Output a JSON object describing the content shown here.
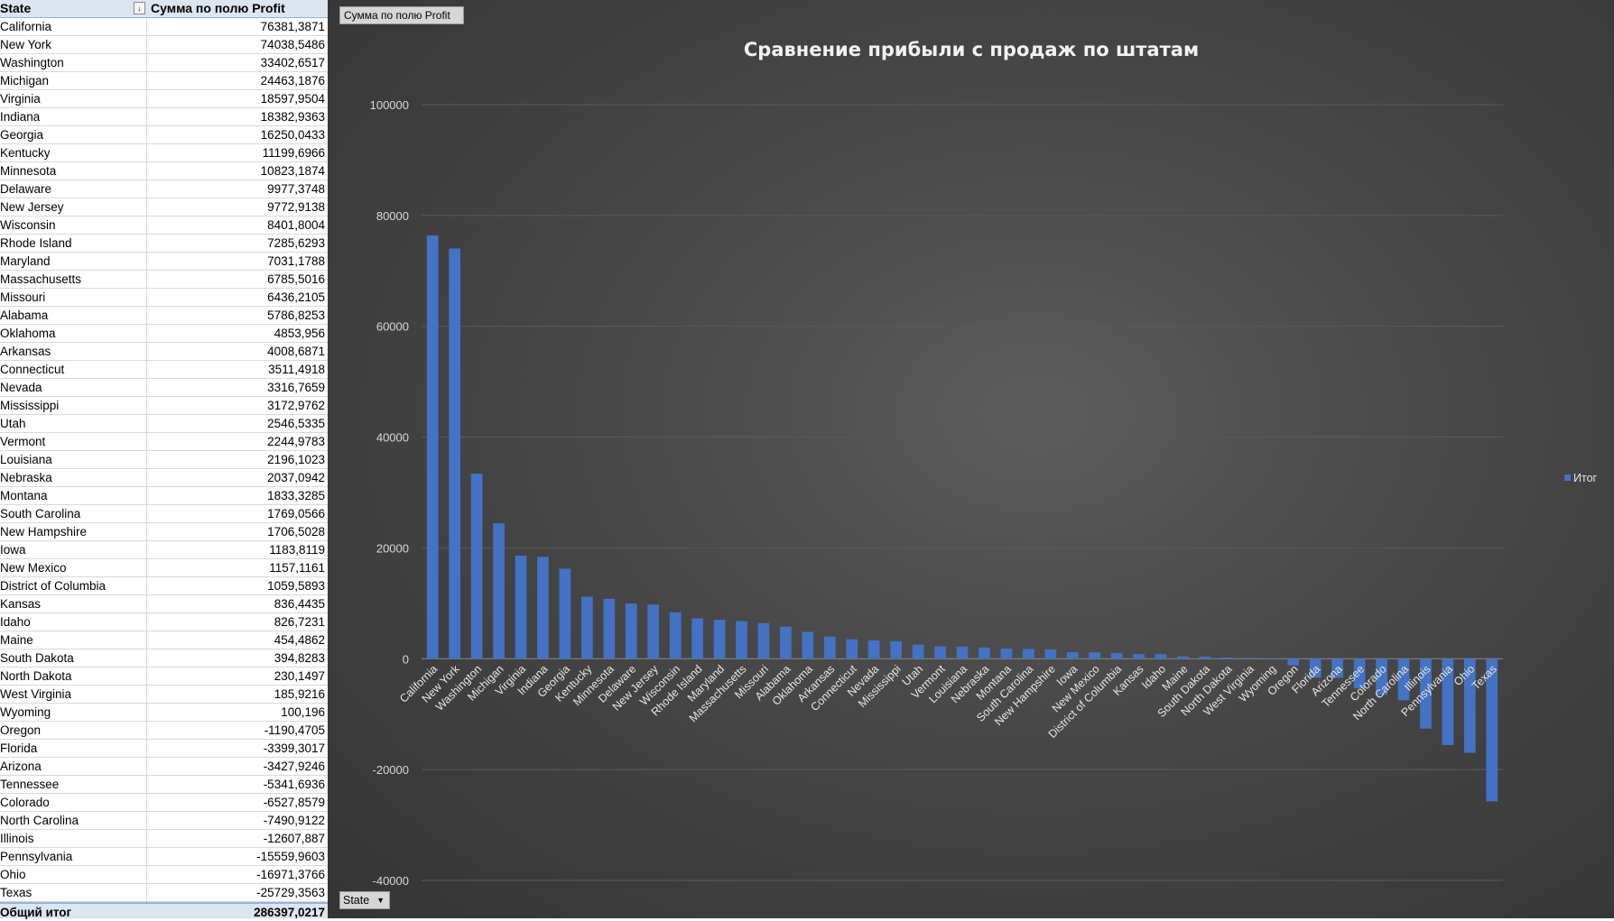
{
  "pivot": {
    "header": {
      "col1": "State",
      "col2": "Сумма по полю Profit"
    },
    "rows": [
      {
        "state": "California",
        "value": "76381,3871"
      },
      {
        "state": "New York",
        "value": "74038,5486"
      },
      {
        "state": "Washington",
        "value": "33402,6517"
      },
      {
        "state": "Michigan",
        "value": "24463,1876"
      },
      {
        "state": "Virginia",
        "value": "18597,9504"
      },
      {
        "state": "Indiana",
        "value": "18382,9363"
      },
      {
        "state": "Georgia",
        "value": "16250,0433"
      },
      {
        "state": "Kentucky",
        "value": "11199,6966"
      },
      {
        "state": "Minnesota",
        "value": "10823,1874"
      },
      {
        "state": "Delaware",
        "value": "9977,3748"
      },
      {
        "state": "New Jersey",
        "value": "9772,9138"
      },
      {
        "state": "Wisconsin",
        "value": "8401,8004"
      },
      {
        "state": "Rhode Island",
        "value": "7285,6293"
      },
      {
        "state": "Maryland",
        "value": "7031,1788"
      },
      {
        "state": "Massachusetts",
        "value": "6785,5016"
      },
      {
        "state": "Missouri",
        "value": "6436,2105"
      },
      {
        "state": "Alabama",
        "value": "5786,8253"
      },
      {
        "state": "Oklahoma",
        "value": "4853,956"
      },
      {
        "state": "Arkansas",
        "value": "4008,6871"
      },
      {
        "state": "Connecticut",
        "value": "3511,4918"
      },
      {
        "state": "Nevada",
        "value": "3316,7659"
      },
      {
        "state": "Mississippi",
        "value": "3172,9762"
      },
      {
        "state": "Utah",
        "value": "2546,5335"
      },
      {
        "state": "Vermont",
        "value": "2244,9783"
      },
      {
        "state": "Louisiana",
        "value": "2196,1023"
      },
      {
        "state": "Nebraska",
        "value": "2037,0942"
      },
      {
        "state": "Montana",
        "value": "1833,3285"
      },
      {
        "state": "South Carolina",
        "value": "1769,0566"
      },
      {
        "state": "New Hampshire",
        "value": "1706,5028"
      },
      {
        "state": "Iowa",
        "value": "1183,8119"
      },
      {
        "state": "New Mexico",
        "value": "1157,1161"
      },
      {
        "state": "District of Columbia",
        "value": "1059,5893"
      },
      {
        "state": "Kansas",
        "value": "836,4435"
      },
      {
        "state": "Idaho",
        "value": "826,7231"
      },
      {
        "state": "Maine",
        "value": "454,4862"
      },
      {
        "state": "South Dakota",
        "value": "394,8283"
      },
      {
        "state": "North Dakota",
        "value": "230,1497"
      },
      {
        "state": "West Virginia",
        "value": "185,9216"
      },
      {
        "state": "Wyoming",
        "value": "100,196"
      },
      {
        "state": "Oregon",
        "value": "-1190,4705"
      },
      {
        "state": "Florida",
        "value": "-3399,3017"
      },
      {
        "state": "Arizona",
        "value": "-3427,9246"
      },
      {
        "state": "Tennessee",
        "value": "-5341,6936"
      },
      {
        "state": "Colorado",
        "value": "-6527,8579"
      },
      {
        "state": "North Carolina",
        "value": "-7490,9122"
      },
      {
        "state": "Illinois",
        "value": "-12607,887"
      },
      {
        "state": "Pennsylvania",
        "value": "-15559,9603"
      },
      {
        "state": "Ohio",
        "value": "-16971,3766"
      },
      {
        "state": "Texas",
        "value": "-25729,3563"
      }
    ],
    "total": {
      "label": "Общий итог",
      "value": "286397,0217"
    }
  },
  "chart_ui": {
    "field_button": "Сумма по полю Profit",
    "axis_button": "State"
  },
  "colors": {
    "bar": "#4472c4",
    "chart_bg": "#404040",
    "header_bg": "#dce6f1"
  },
  "chart_data": {
    "type": "bar",
    "title": "Сравнение прибыли с продаж по штатам",
    "xlabel": "",
    "ylabel": "",
    "ylim": [
      -40000,
      100000
    ],
    "yticks": [
      -40000,
      -20000,
      0,
      20000,
      40000,
      60000,
      80000,
      100000
    ],
    "grid": true,
    "legend_position": "right",
    "categories": [
      "California",
      "New York",
      "Washington",
      "Michigan",
      "Virginia",
      "Indiana",
      "Georgia",
      "Kentucky",
      "Minnesota",
      "Delaware",
      "New Jersey",
      "Wisconsin",
      "Rhode Island",
      "Maryland",
      "Massachusetts",
      "Missouri",
      "Alabama",
      "Oklahoma",
      "Arkansas",
      "Connecticut",
      "Nevada",
      "Mississippi",
      "Utah",
      "Vermont",
      "Louisiana",
      "Nebraska",
      "Montana",
      "South Carolina",
      "New Hampshire",
      "Iowa",
      "New Mexico",
      "District of Columbia",
      "Kansas",
      "Idaho",
      "Maine",
      "South Dakota",
      "North Dakota",
      "West Virginia",
      "Wyoming",
      "Oregon",
      "Florida",
      "Arizona",
      "Tennessee",
      "Colorado",
      "North Carolina",
      "Illinois",
      "Pennsylvania",
      "Ohio",
      "Texas"
    ],
    "series": [
      {
        "name": "Итог",
        "values": [
          76381.3871,
          74038.5486,
          33402.6517,
          24463.1876,
          18597.9504,
          18382.9363,
          16250.0433,
          11199.6966,
          10823.1874,
          9977.3748,
          9772.9138,
          8401.8004,
          7285.6293,
          7031.1788,
          6785.5016,
          6436.2105,
          5786.8253,
          4853.956,
          4008.6871,
          3511.4918,
          3316.7659,
          3172.9762,
          2546.5335,
          2244.9783,
          2196.1023,
          2037.0942,
          1833.3285,
          1769.0566,
          1706.5028,
          1183.8119,
          1157.1161,
          1059.5893,
          836.4435,
          826.7231,
          454.4862,
          394.8283,
          230.1497,
          185.9216,
          100.196,
          -1190.4705,
          -3399.3017,
          -3427.9246,
          -5341.6936,
          -6527.8579,
          -7490.9122,
          -12607.887,
          -15559.9603,
          -16971.3766,
          -25729.3563
        ]
      }
    ]
  }
}
